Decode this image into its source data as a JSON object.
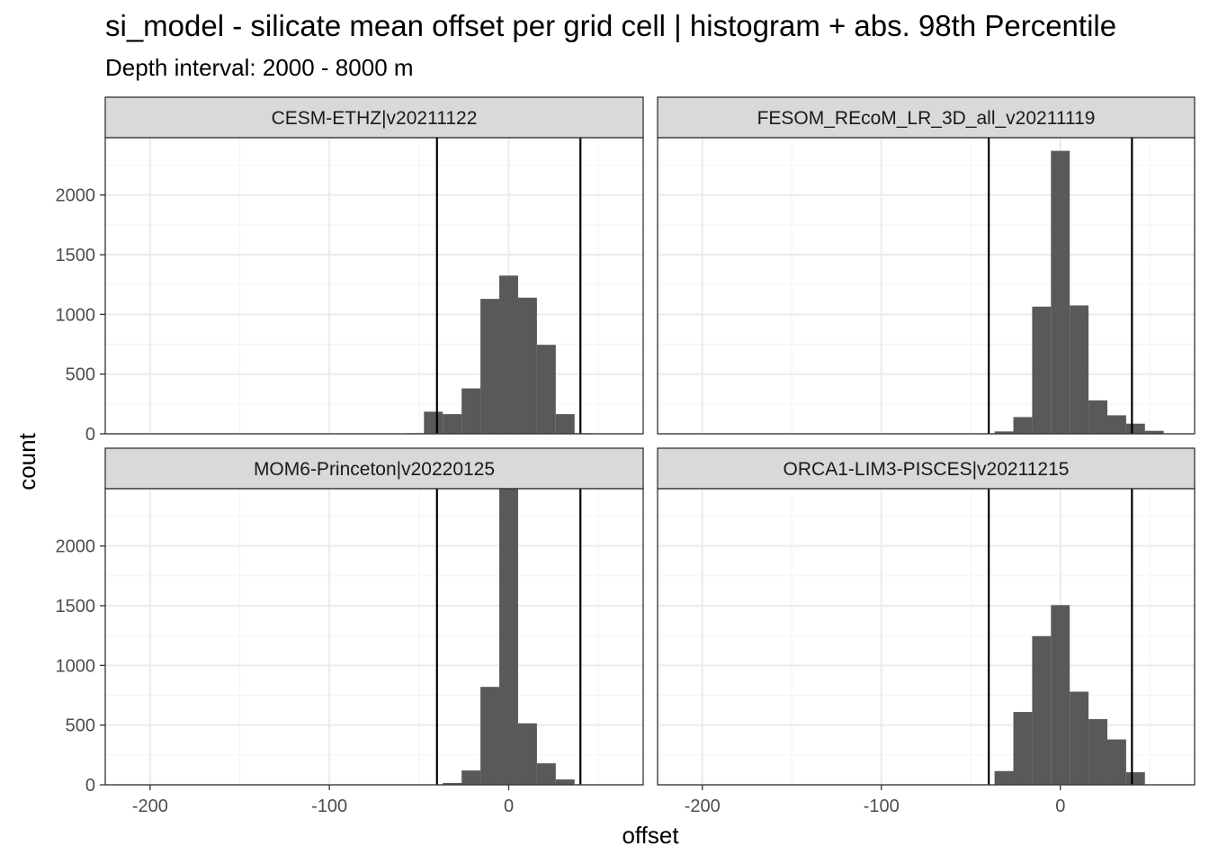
{
  "title": "si_model  -  silicate mean offset per grid cell | histogram + abs. 98th Percentile",
  "subtitle": "Depth interval: 2000 - 8000 m",
  "colors": {
    "bar": "#595959",
    "strip_bg": "#d9d9d9",
    "grid_major": "#ebebeb",
    "grid_minor": "#f5f5f5",
    "frame": "#333333",
    "vline": "#000000"
  },
  "chart_data": {
    "type": "bar",
    "xlabel": "offset",
    "ylabel": "count",
    "xlim": [
      -225,
      75
    ],
    "ylim": [
      0,
      2480
    ],
    "x_ticks": [
      -200,
      -100,
      0
    ],
    "x_tick_labels": [
      "-200",
      "-100",
      "0"
    ],
    "y_ticks": [
      0,
      500,
      1000,
      1500,
      2000
    ],
    "y_tick_labels": [
      "0",
      "500",
      "1000",
      "1500",
      "2000"
    ],
    "bin_width": 10.5,
    "grid": true,
    "panels": [
      {
        "label": "CESM-ETHZ|v20211122",
        "vlines": [
          -40,
          40
        ],
        "bins": [
          {
            "x": -52.5,
            "count": 5
          },
          {
            "x": -42,
            "count": 185
          },
          {
            "x": -31.5,
            "count": 165
          },
          {
            "x": -21,
            "count": 380
          },
          {
            "x": -10.5,
            "count": 1130
          },
          {
            "x": 0,
            "count": 1325
          },
          {
            "x": 10.5,
            "count": 1140
          },
          {
            "x": 21,
            "count": 745
          },
          {
            "x": 31.5,
            "count": 165
          },
          {
            "x": 42,
            "count": 5
          }
        ]
      },
      {
        "label": "FESOM_REcoM_LR_3D_all_v20211119",
        "vlines": [
          -40,
          40
        ],
        "bins": [
          {
            "x": -31.5,
            "count": 20
          },
          {
            "x": -21,
            "count": 140
          },
          {
            "x": -10.5,
            "count": 1065
          },
          {
            "x": 0,
            "count": 2370
          },
          {
            "x": 10.5,
            "count": 1075
          },
          {
            "x": 21,
            "count": 280
          },
          {
            "x": 31.5,
            "count": 155
          },
          {
            "x": 42,
            "count": 85
          },
          {
            "x": 52.5,
            "count": 25
          }
        ]
      },
      {
        "label": "MOM6-Princeton|v20220125",
        "vlines": [
          -40,
          40
        ],
        "bins": [
          {
            "x": -31.5,
            "count": 15
          },
          {
            "x": -21,
            "count": 120
          },
          {
            "x": -10.5,
            "count": 820
          },
          {
            "x": 0,
            "count": 2480
          },
          {
            "x": 10.5,
            "count": 515
          },
          {
            "x": 21,
            "count": 180
          },
          {
            "x": 31.5,
            "count": 45
          }
        ]
      },
      {
        "label": "ORCA1-LIM3-PISCES|v20211215",
        "vlines": [
          -40,
          40
        ],
        "bins": [
          {
            "x": -31.5,
            "count": 115
          },
          {
            "x": -21,
            "count": 610
          },
          {
            "x": -10.5,
            "count": 1245
          },
          {
            "x": 0,
            "count": 1505
          },
          {
            "x": 10.5,
            "count": 780
          },
          {
            "x": 21,
            "count": 550
          },
          {
            "x": 31.5,
            "count": 380
          },
          {
            "x": 42,
            "count": 105
          }
        ]
      }
    ]
  }
}
